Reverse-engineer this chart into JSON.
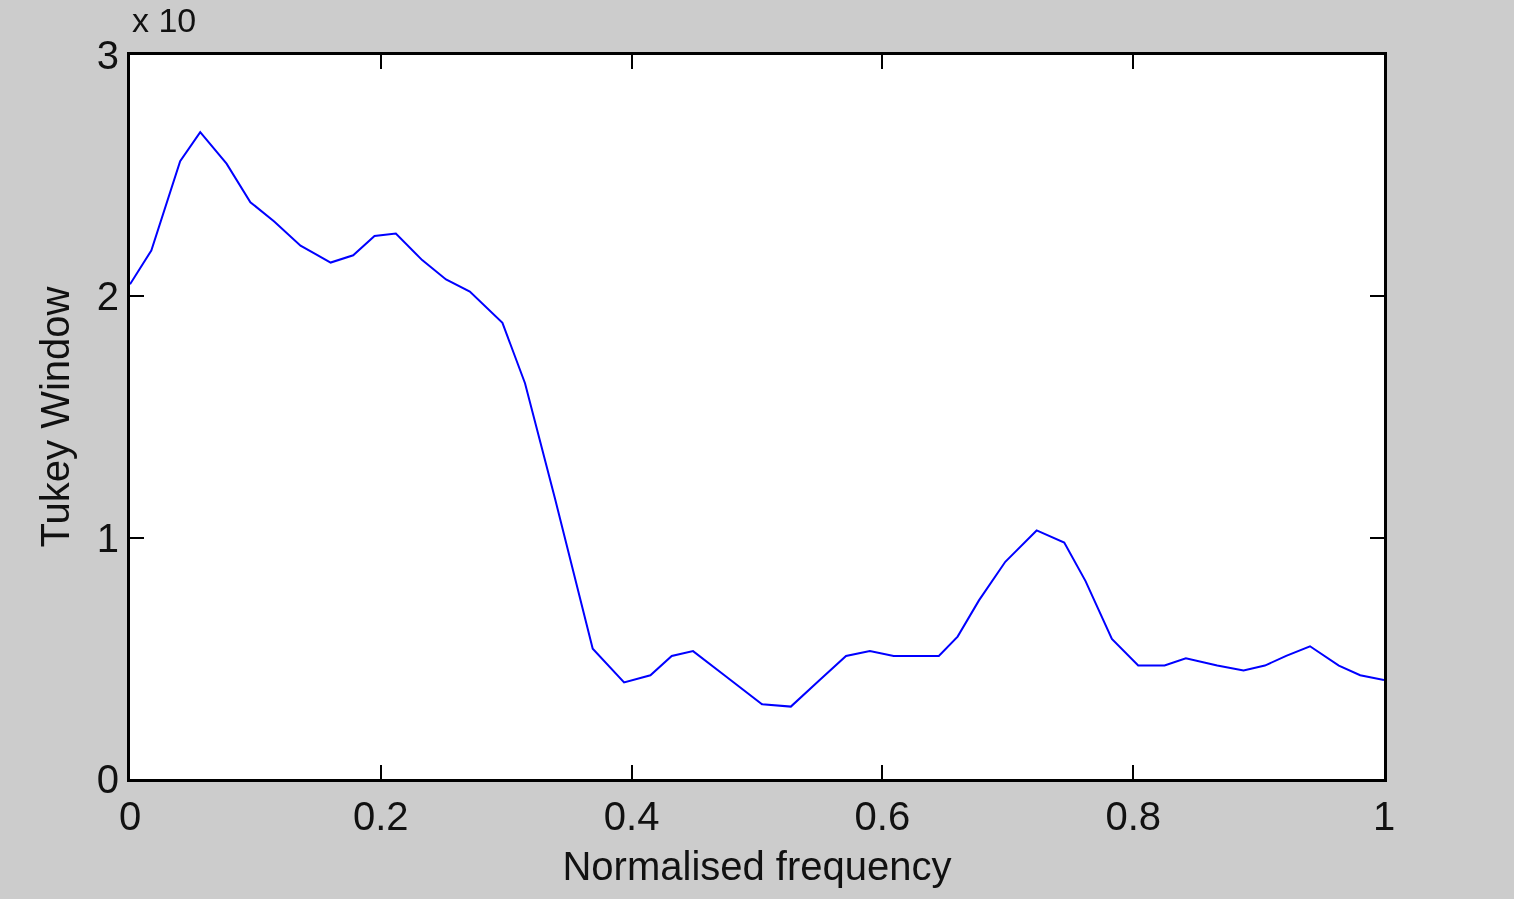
{
  "chart_data": {
    "type": "line",
    "xlabel": "Normalised frequency",
    "ylabel": "Tukey Window",
    "annotations": [
      "x 10"
    ],
    "x": [
      0,
      0.017,
      0.04,
      0.056,
      0.077,
      0.096,
      0.115,
      0.136,
      0.16,
      0.178,
      0.195,
      0.212,
      0.233,
      0.252,
      0.271,
      0.297,
      0.315,
      0.339,
      0.369,
      0.394,
      0.415,
      0.432,
      0.449,
      0.474,
      0.504,
      0.527,
      0.55,
      0.571,
      0.59,
      0.609,
      0.626,
      0.645,
      0.66,
      0.677,
      0.698,
      0.723,
      0.745,
      0.762,
      0.783,
      0.804,
      0.825,
      0.842,
      0.867,
      0.888,
      0.905,
      0.922,
      0.941,
      0.964,
      0.981,
      1
    ],
    "series": [
      {
        "color": "#0000ff",
        "values": [
          2.05,
          2.19,
          2.56,
          2.68,
          2.55,
          2.39,
          2.31,
          2.21,
          2.14,
          2.17,
          2.25,
          2.26,
          2.15,
          2.07,
          2.02,
          1.89,
          1.64,
          1.16,
          0.54,
          0.4,
          0.43,
          0.51,
          0.53,
          0.43,
          0.31,
          0.3,
          0.41,
          0.51,
          0.53,
          0.51,
          0.51,
          0.51,
          0.59,
          0.74,
          0.9,
          1.03,
          0.98,
          0.82,
          0.58,
          0.47,
          0.47,
          0.5,
          0.47,
          0.45,
          0.47,
          0.51,
          0.55,
          0.47,
          0.43,
          0.41
        ]
      }
    ],
    "xlim": [
      0,
      1
    ],
    "xticks": [
      0,
      0.2,
      0.4,
      0.6,
      0.8,
      1
    ],
    "ylim": [
      0,
      3
    ],
    "yticks": [
      0,
      1,
      2,
      3
    ],
    "marker": "none",
    "line_style": "solid"
  }
}
